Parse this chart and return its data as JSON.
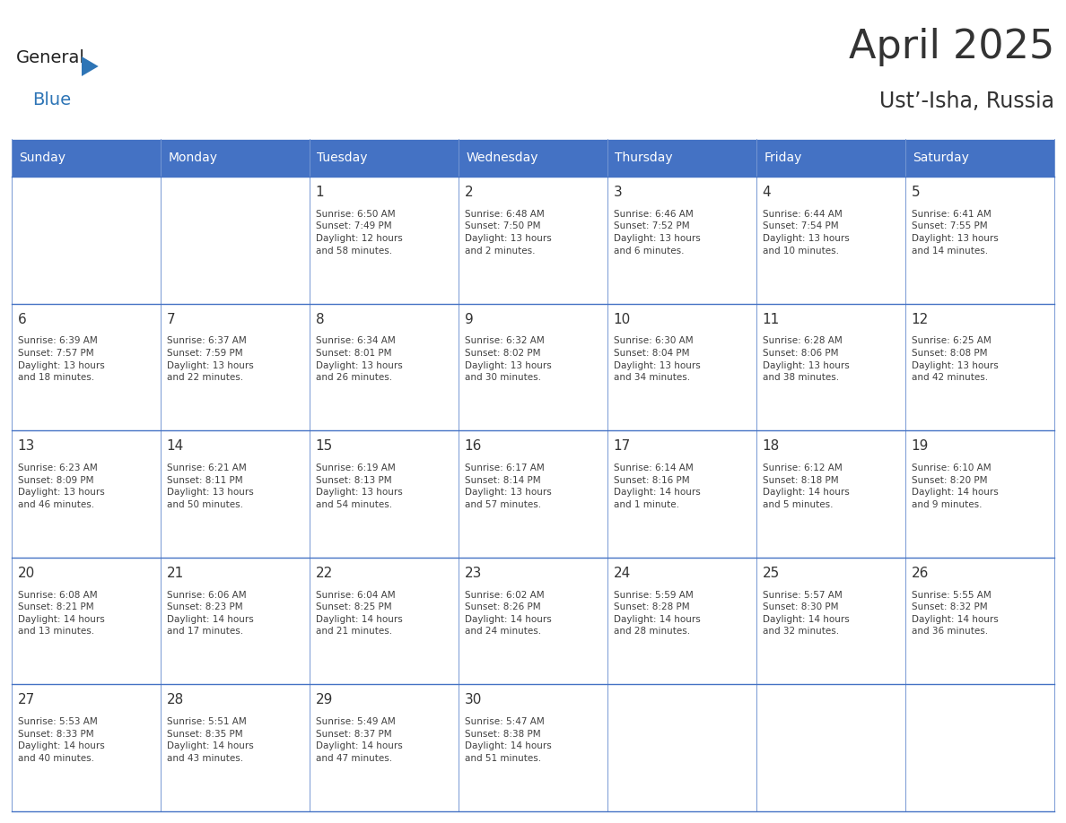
{
  "title": "April 2025",
  "subtitle": "Ust’-Isha, Russia",
  "days_of_week": [
    "Sunday",
    "Monday",
    "Tuesday",
    "Wednesday",
    "Thursday",
    "Friday",
    "Saturday"
  ],
  "header_bg": "#4472C4",
  "header_text": "#FFFFFF",
  "cell_bg": "#FFFFFF",
  "text_color": "#404040",
  "day_num_color": "#333333",
  "line_color": "#4472C4",
  "logo_general_color": "#222222",
  "logo_blue_color": "#2E75B6",
  "weeks": [
    [
      {
        "day": null,
        "info": null
      },
      {
        "day": null,
        "info": null
      },
      {
        "day": 1,
        "info": "Sunrise: 6:50 AM\nSunset: 7:49 PM\nDaylight: 12 hours\nand 58 minutes."
      },
      {
        "day": 2,
        "info": "Sunrise: 6:48 AM\nSunset: 7:50 PM\nDaylight: 13 hours\nand 2 minutes."
      },
      {
        "day": 3,
        "info": "Sunrise: 6:46 AM\nSunset: 7:52 PM\nDaylight: 13 hours\nand 6 minutes."
      },
      {
        "day": 4,
        "info": "Sunrise: 6:44 AM\nSunset: 7:54 PM\nDaylight: 13 hours\nand 10 minutes."
      },
      {
        "day": 5,
        "info": "Sunrise: 6:41 AM\nSunset: 7:55 PM\nDaylight: 13 hours\nand 14 minutes."
      }
    ],
    [
      {
        "day": 6,
        "info": "Sunrise: 6:39 AM\nSunset: 7:57 PM\nDaylight: 13 hours\nand 18 minutes."
      },
      {
        "day": 7,
        "info": "Sunrise: 6:37 AM\nSunset: 7:59 PM\nDaylight: 13 hours\nand 22 minutes."
      },
      {
        "day": 8,
        "info": "Sunrise: 6:34 AM\nSunset: 8:01 PM\nDaylight: 13 hours\nand 26 minutes."
      },
      {
        "day": 9,
        "info": "Sunrise: 6:32 AM\nSunset: 8:02 PM\nDaylight: 13 hours\nand 30 minutes."
      },
      {
        "day": 10,
        "info": "Sunrise: 6:30 AM\nSunset: 8:04 PM\nDaylight: 13 hours\nand 34 minutes."
      },
      {
        "day": 11,
        "info": "Sunrise: 6:28 AM\nSunset: 8:06 PM\nDaylight: 13 hours\nand 38 minutes."
      },
      {
        "day": 12,
        "info": "Sunrise: 6:25 AM\nSunset: 8:08 PM\nDaylight: 13 hours\nand 42 minutes."
      }
    ],
    [
      {
        "day": 13,
        "info": "Sunrise: 6:23 AM\nSunset: 8:09 PM\nDaylight: 13 hours\nand 46 minutes."
      },
      {
        "day": 14,
        "info": "Sunrise: 6:21 AM\nSunset: 8:11 PM\nDaylight: 13 hours\nand 50 minutes."
      },
      {
        "day": 15,
        "info": "Sunrise: 6:19 AM\nSunset: 8:13 PM\nDaylight: 13 hours\nand 54 minutes."
      },
      {
        "day": 16,
        "info": "Sunrise: 6:17 AM\nSunset: 8:14 PM\nDaylight: 13 hours\nand 57 minutes."
      },
      {
        "day": 17,
        "info": "Sunrise: 6:14 AM\nSunset: 8:16 PM\nDaylight: 14 hours\nand 1 minute."
      },
      {
        "day": 18,
        "info": "Sunrise: 6:12 AM\nSunset: 8:18 PM\nDaylight: 14 hours\nand 5 minutes."
      },
      {
        "day": 19,
        "info": "Sunrise: 6:10 AM\nSunset: 8:20 PM\nDaylight: 14 hours\nand 9 minutes."
      }
    ],
    [
      {
        "day": 20,
        "info": "Sunrise: 6:08 AM\nSunset: 8:21 PM\nDaylight: 14 hours\nand 13 minutes."
      },
      {
        "day": 21,
        "info": "Sunrise: 6:06 AM\nSunset: 8:23 PM\nDaylight: 14 hours\nand 17 minutes."
      },
      {
        "day": 22,
        "info": "Sunrise: 6:04 AM\nSunset: 8:25 PM\nDaylight: 14 hours\nand 21 minutes."
      },
      {
        "day": 23,
        "info": "Sunrise: 6:02 AM\nSunset: 8:26 PM\nDaylight: 14 hours\nand 24 minutes."
      },
      {
        "day": 24,
        "info": "Sunrise: 5:59 AM\nSunset: 8:28 PM\nDaylight: 14 hours\nand 28 minutes."
      },
      {
        "day": 25,
        "info": "Sunrise: 5:57 AM\nSunset: 8:30 PM\nDaylight: 14 hours\nand 32 minutes."
      },
      {
        "day": 26,
        "info": "Sunrise: 5:55 AM\nSunset: 8:32 PM\nDaylight: 14 hours\nand 36 minutes."
      }
    ],
    [
      {
        "day": 27,
        "info": "Sunrise: 5:53 AM\nSunset: 8:33 PM\nDaylight: 14 hours\nand 40 minutes."
      },
      {
        "day": 28,
        "info": "Sunrise: 5:51 AM\nSunset: 8:35 PM\nDaylight: 14 hours\nand 43 minutes."
      },
      {
        "day": 29,
        "info": "Sunrise: 5:49 AM\nSunset: 8:37 PM\nDaylight: 14 hours\nand 47 minutes."
      },
      {
        "day": 30,
        "info": "Sunrise: 5:47 AM\nSunset: 8:38 PM\nDaylight: 14 hours\nand 51 minutes."
      },
      {
        "day": null,
        "info": null
      },
      {
        "day": null,
        "info": null
      },
      {
        "day": null,
        "info": null
      }
    ]
  ],
  "figsize": [
    11.88,
    9.18
  ],
  "dpi": 100
}
